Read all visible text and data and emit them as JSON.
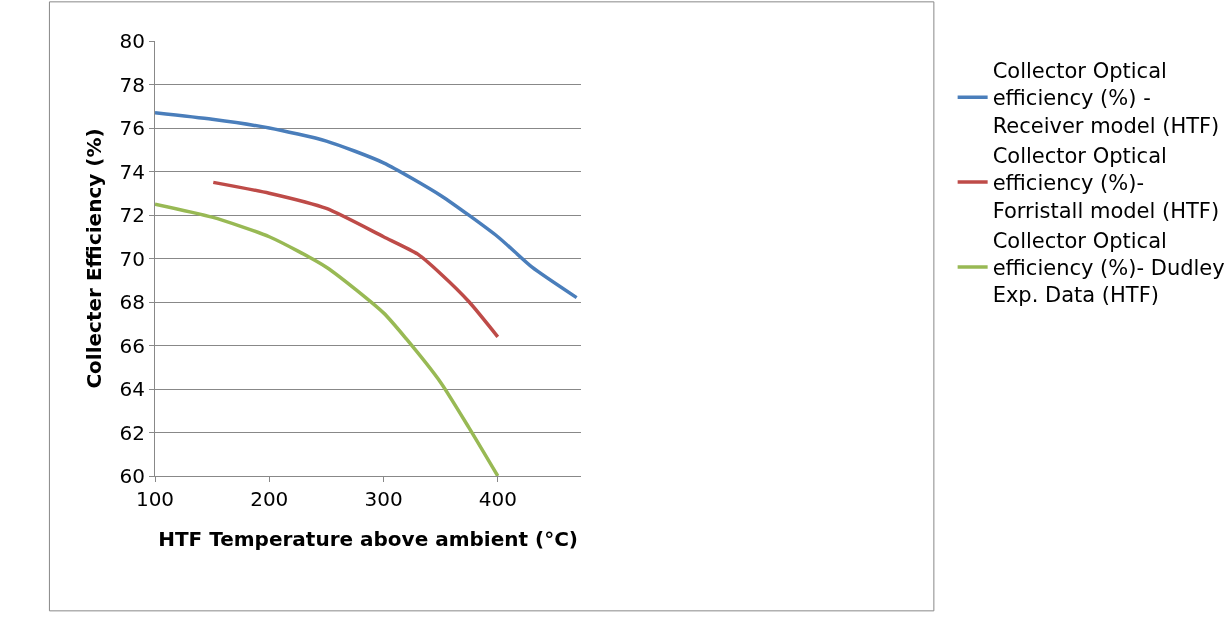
{
  "chart_data": {
    "type": "line",
    "xlabel": "HTF Temperature above ambient (°C)",
    "ylabel": "Collecter Efficiency (%)",
    "xlim": [
      100,
      473
    ],
    "xticks": [
      100,
      200,
      300,
      400
    ],
    "ylim": [
      60,
      80
    ],
    "yticks": [
      60,
      62,
      64,
      66,
      68,
      70,
      72,
      74,
      76,
      78,
      80
    ],
    "grid": "y",
    "legend": "right",
    "marker": "none",
    "line_style": "solid",
    "series": [
      {
        "name": "Collector Optical efficiency (%) - Receiver model (HTF)",
        "color": "#4a7ebb",
        "x": [
          100,
          150,
          200,
          250,
          300,
          350,
          400,
          430,
          469
        ],
        "values": [
          76.7,
          76.4,
          76.0,
          75.4,
          74.4,
          72.9,
          71.0,
          69.6,
          68.2
        ]
      },
      {
        "name": "Collector Optical efficiency (%)- Forristall model (HTF)",
        "color": "#be4b48",
        "x": [
          151,
          200,
          250,
          300,
          330,
          350,
          375,
          400
        ],
        "values": [
          73.5,
          73.0,
          72.3,
          71.0,
          70.2,
          69.3,
          68.0,
          66.4
        ]
      },
      {
        "name": "Collector Optical efficiency (%)- Dudley Exp. Data (HTF)",
        "color": "#98b954",
        "x": [
          100,
          150,
          200,
          250,
          300,
          320,
          350,
          375,
          400
        ],
        "values": [
          72.5,
          71.9,
          71.0,
          69.6,
          67.5,
          66.3,
          64.3,
          62.2,
          60.0
        ]
      }
    ]
  }
}
